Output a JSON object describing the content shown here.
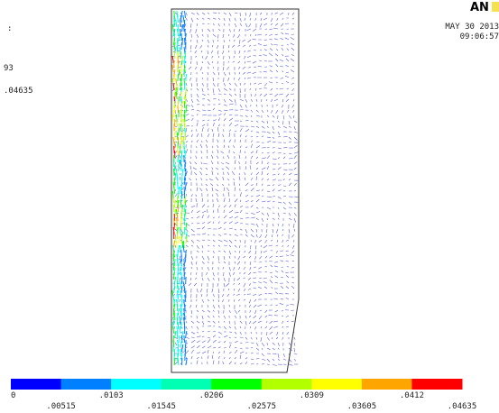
{
  "header": {
    "left_marks": [
      ":",
      "93",
      ".04635"
    ],
    "logo": "AN",
    "date": "MAY 30 2013",
    "time": "09:06:57"
  },
  "legend": {
    "colors": [
      "#0000ff",
      "#0080ff",
      "#00ffff",
      "#00ffb2",
      "#00ff00",
      "#b2ff00",
      "#ffff00",
      "#ffa500",
      "#ff0000"
    ],
    "labels_top": [
      "0",
      ".0103",
      ".0206",
      ".0309",
      ".0412"
    ],
    "labels_bottom": [
      ".00515",
      ".01545",
      ".02575",
      ".03605",
      ".04635"
    ]
  }
}
